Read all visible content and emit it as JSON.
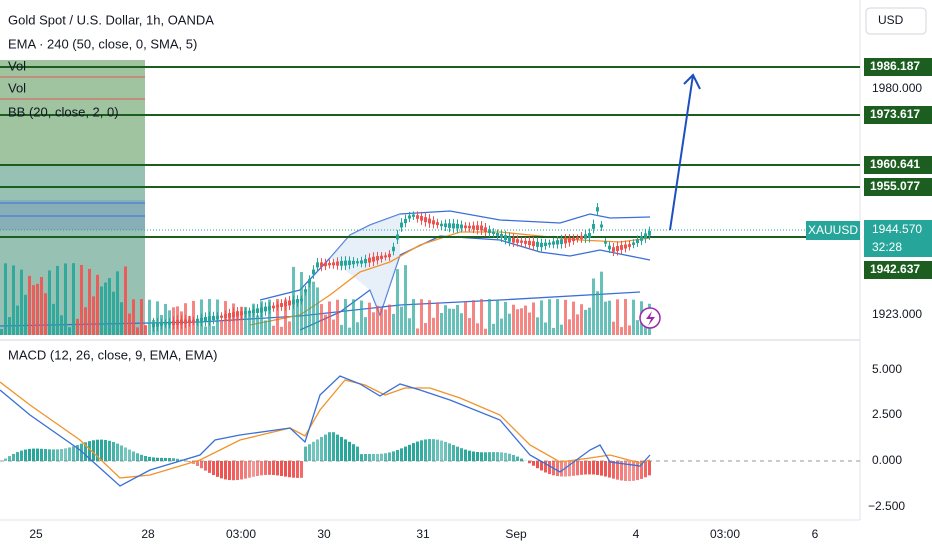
{
  "header": {
    "title": "Gold Spot / U.S. Dollar, 1h, OANDA",
    "indicators": [
      "EMA · 240 (50, close, 0, SMA, 5)",
      "Vol",
      "Vol",
      "BB (20, close, 2, 0)"
    ]
  },
  "currency": "USD",
  "price_axis": {
    "labels": [
      "1980.000",
      "1923.000"
    ]
  },
  "levels": [
    "1986.187",
    "1973.617",
    "1960.641",
    "1955.077",
    "1942.637"
  ],
  "symbol": {
    "name": "XAUUSD",
    "price": "1944.570",
    "countdown": "32:28"
  },
  "macd": {
    "title": "MACD (12, 26, close, 9, EMA, EMA)",
    "labels": [
      "5.000",
      "2.500",
      "0.000",
      "−2.500"
    ]
  },
  "time_axis": [
    "25",
    "28",
    "03:00",
    "30",
    "31",
    "Sep",
    "4",
    "03:00",
    "6"
  ]
}
